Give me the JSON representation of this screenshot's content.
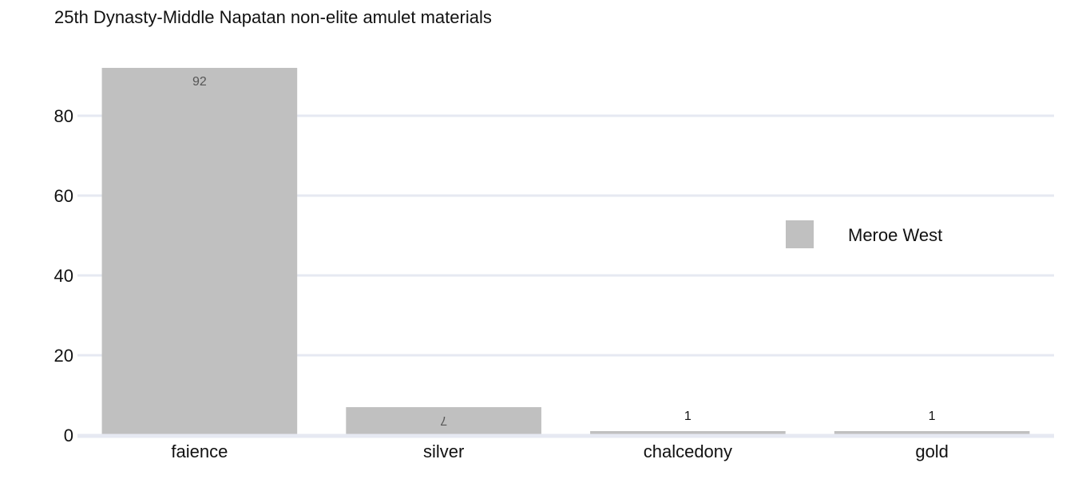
{
  "chart_data": {
    "type": "bar",
    "title": "25th Dynasty-Middle Napatan non-elite amulet materials",
    "xlabel": "",
    "ylabel": "",
    "categories": [
      "faience",
      "silver",
      "chalcedony",
      "gold"
    ],
    "series": [
      {
        "name": "Meroe West",
        "values": [
          92,
          7,
          1,
          1
        ],
        "color": "#c0c0c0"
      }
    ],
    "data_labels": [
      "92",
      "7",
      "1",
      "1"
    ],
    "ylim": [
      0,
      92
    ],
    "yticks": [
      0,
      20,
      40,
      60,
      80
    ],
    "grid": true,
    "legend_position": "right",
    "colors": {
      "bar": "#c0c0c0",
      "grid": "#e6e9f2",
      "axis_line": "#e6e9f2",
      "text": "#111111",
      "inner_label": "#555555"
    }
  }
}
